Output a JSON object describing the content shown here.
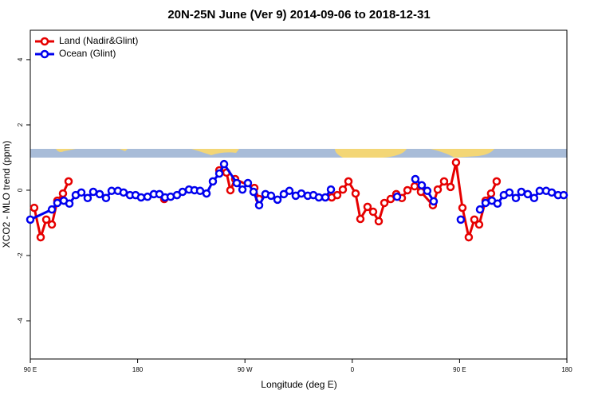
{
  "chart_data": {
    "type": "line",
    "title": "20N-25N June (Ver 9)   2014-09-06 to 2018-12-31",
    "xlabel": "Longitude (deg E)",
    "ylabel": "XCO2 - MLO trend (ppm)",
    "xlim": [
      90,
      540
    ],
    "ylim": [
      -5.17,
      4.9
    ],
    "xticks": [
      {
        "value": 90,
        "label": "90 E"
      },
      180,
      {
        "value": 270,
        "label": "90 W"
      },
      {
        "value": 360,
        "label": "0"
      },
      {
        "value": 450,
        "label": "90 E"
      },
      {
        "value": 540,
        "label": "180"
      }
    ],
    "yticks": [
      -4,
      -2,
      0,
      2,
      4
    ],
    "legend": "top-left",
    "series": [
      {
        "name": "Land (Nadir&Glint)",
        "color": "#e60000",
        "x": [
          93.3,
          98.7,
          103.4,
          108.1,
          112.7,
          117.4,
          122.1,
          null,
          202.3,
          null,
          248.5,
          254.5,
          257.8,
          261.8,
          277.9,
          281.9,
          null,
          342.8,
          347.4,
          352.1,
          356.8,
          362.8,
          366.8,
          372.8,
          377.5,
          382.2,
          386.9,
          392.2,
          396.9,
          401.6,
          406.3,
          412.3,
          417.6,
          427.6,
          431.7,
          437.0,
          442.4,
          447.0,
          452.4,
          457.7,
          462.4,
          466.4,
          471.8,
          476.4,
          481.1
        ],
        "values": [
          -0.54,
          -1.44,
          -0.9,
          -1.05,
          -0.32,
          -0.1,
          0.27,
          null,
          -0.27,
          null,
          0.61,
          0.54,
          0.0,
          0.34,
          0.07,
          -0.27,
          null,
          -0.22,
          -0.15,
          0.02,
          0.27,
          -0.1,
          -0.88,
          -0.51,
          -0.66,
          -0.95,
          -0.39,
          -0.27,
          -0.12,
          -0.24,
          0.0,
          0.12,
          -0.05,
          -0.46,
          0.02,
          0.27,
          0.1,
          0.85,
          -0.54,
          -1.44,
          -0.9,
          -1.05,
          -0.32,
          -0.1,
          0.27
        ]
      },
      {
        "name": "Ocean (Glint)",
        "color": "#0000ee",
        "x": [
          90,
          108.1,
          112.7,
          118.1,
          122.8,
          128.1,
          132.8,
          138.1,
          142.8,
          148.2,
          153.5,
          158.2,
          163.5,
          168.2,
          173.6,
          178.3,
          182.9,
          188.3,
          193.6,
          198.3,
          203.0,
          207.7,
          213.0,
          217.7,
          223.1,
          227.7,
          232.4,
          237.8,
          243.1,
          248.5,
          252.5,
          263.2,
          267.9,
          272.5,
          277.2,
          281.9,
          287.2,
          291.9,
          297.3,
          302.6,
          307.3,
          312.6,
          317.3,
          322.7,
          327.4,
          332.0,
          337.4,
          342.1,
          null,
          397.6,
          null,
          412.9,
          418.3,
          422.9,
          428.3,
          null,
          451.0,
          null,
          467.1,
          471.8,
          477.1,
          481.8,
          487.1,
          491.8,
          497.2,
          501.8,
          507.2,
          512.5,
          517.2,
          522.6,
          527.3,
          532.6,
          537.3
        ],
        "values": [
          -0.9,
          -0.59,
          -0.39,
          -0.32,
          -0.41,
          -0.15,
          -0.07,
          -0.24,
          -0.05,
          -0.12,
          -0.24,
          -0.02,
          -0.02,
          -0.07,
          -0.15,
          -0.15,
          -0.22,
          -0.2,
          -0.12,
          -0.12,
          -0.22,
          -0.2,
          -0.15,
          -0.05,
          0.02,
          0.0,
          -0.02,
          -0.1,
          0.27,
          0.51,
          0.8,
          0.22,
          0.02,
          0.22,
          -0.05,
          -0.46,
          -0.12,
          -0.17,
          -0.29,
          -0.12,
          -0.02,
          -0.17,
          -0.1,
          -0.17,
          -0.15,
          -0.22,
          -0.22,
          0.02,
          null,
          -0.2,
          null,
          0.34,
          0.15,
          -0.02,
          -0.34,
          null,
          -0.9,
          null,
          -0.59,
          -0.39,
          -0.32,
          -0.41,
          -0.15,
          -0.07,
          -0.24,
          -0.05,
          -0.12,
          -0.24,
          -0.02,
          -0.02,
          -0.07,
          -0.15,
          -0.15
        ]
      }
    ]
  }
}
